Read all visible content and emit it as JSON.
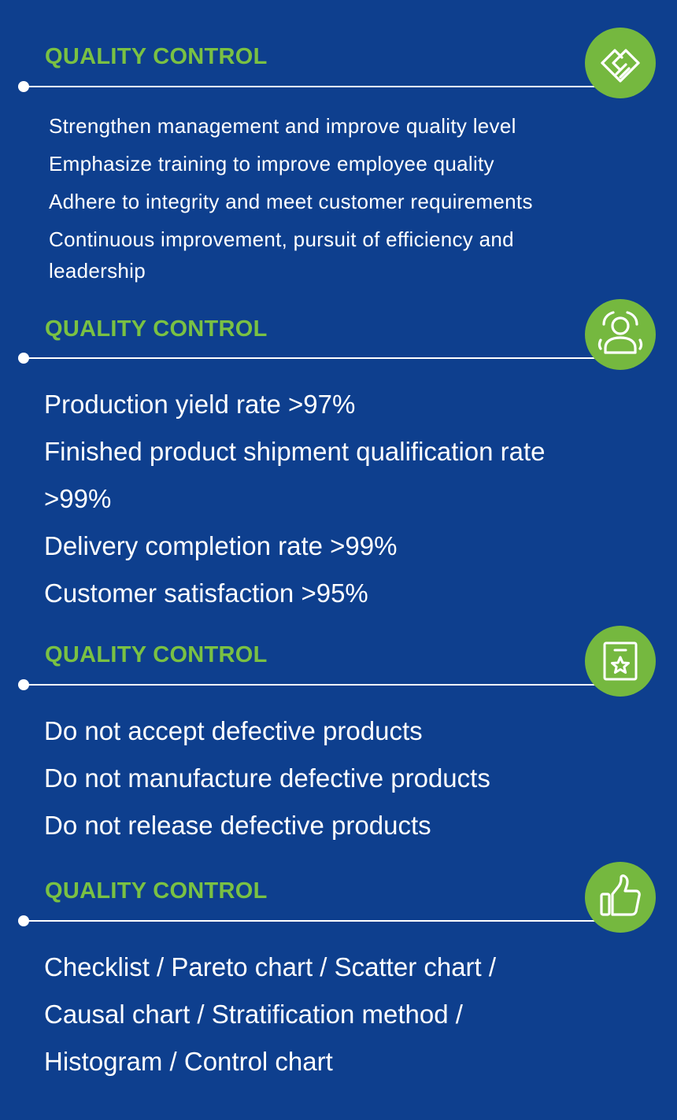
{
  "colors": {
    "background": "#0e3f8e",
    "accent_green": "#7ac143",
    "badge_green": "#75b83f",
    "text": "#ffffff"
  },
  "sections": [
    {
      "title": "QUALITY CONTROL",
      "icon": "handshake-icon",
      "items": [
        "Strengthen management and improve quality level",
        "Emphasize training to improve employee quality",
        "Adhere to integrity and meet customer requirements",
        "Continuous improvement, pursuit of efficiency and leadership"
      ]
    },
    {
      "title": "QUALITY CONTROL",
      "icon": "user-icon",
      "items": [
        "Production yield rate >97%",
        "Finished product  shipment qualification rate >99%",
        "Delivery completion rate >99%",
        "Customer satisfaction >95%"
      ]
    },
    {
      "title": "QUALITY CONTROL",
      "icon": "star-badge-icon",
      "items": [
        "Do not accept defective products",
        "Do not manufacture defective products",
        "Do not release defective products"
      ]
    },
    {
      "title": "QUALITY CONTROL",
      "icon": "thumbs-up-icon",
      "items": [
        "Checklist / Pareto chart / Scatter chart /",
        "Causal chart / Stratification method /",
        "Histogram / Control chart"
      ]
    }
  ]
}
